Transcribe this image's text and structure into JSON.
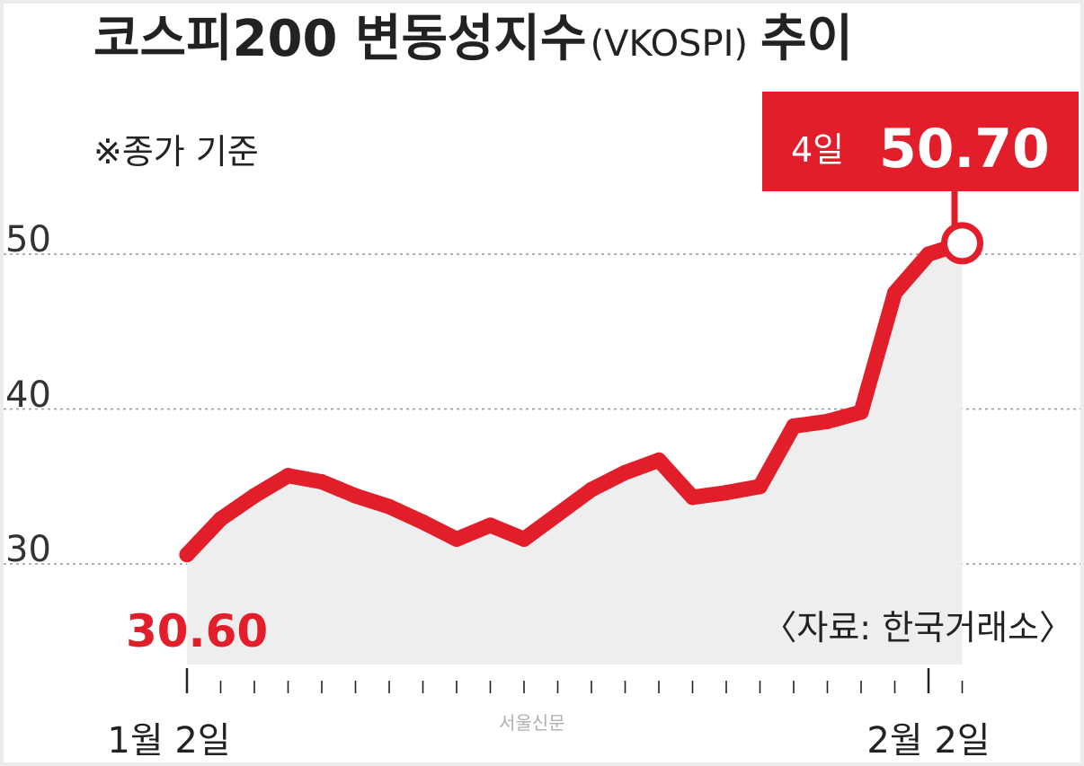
{
  "chart_data": {
    "type": "line",
    "title": "코스피200 변동성지수",
    "title_suffix": "(VKOSPI)",
    "title_end": "추이",
    "subtitle": "※종가 기준",
    "source": "〈자료: 한국거래소〉",
    "watermark": "서울신문",
    "xlabel": "",
    "ylabel": "",
    "ylim": [
      25,
      54
    ],
    "yticks": [
      "30",
      "40",
      "50"
    ],
    "ytick_values": [
      30,
      40,
      50
    ],
    "grid": true,
    "start_label": "30.60",
    "end_label": {
      "day": "4일",
      "value": "50.70"
    },
    "x_tick_labels": [
      {
        "index": 0,
        "label": "1월 2일"
      },
      {
        "index": 22,
        "label": "2월 2일"
      }
    ],
    "series": [
      {
        "values": [
          30.6,
          32.9,
          34.4,
          35.7,
          35.3,
          34.4,
          33.7,
          32.7,
          31.6,
          32.5,
          31.6,
          33.2,
          34.8,
          35.9,
          36.7,
          34.3,
          34.6,
          35.0,
          38.9,
          39.2,
          39.8,
          47.5,
          50.0,
          50.7
        ],
        "color": "#e21e2a"
      }
    ],
    "colors": {
      "line": "#e21e2a",
      "area": "#eeeeee",
      "grid": "#9a9a9a",
      "text": "#222222",
      "callout_bg": "#e21e2a",
      "callout_text": "#ffffff"
    }
  }
}
